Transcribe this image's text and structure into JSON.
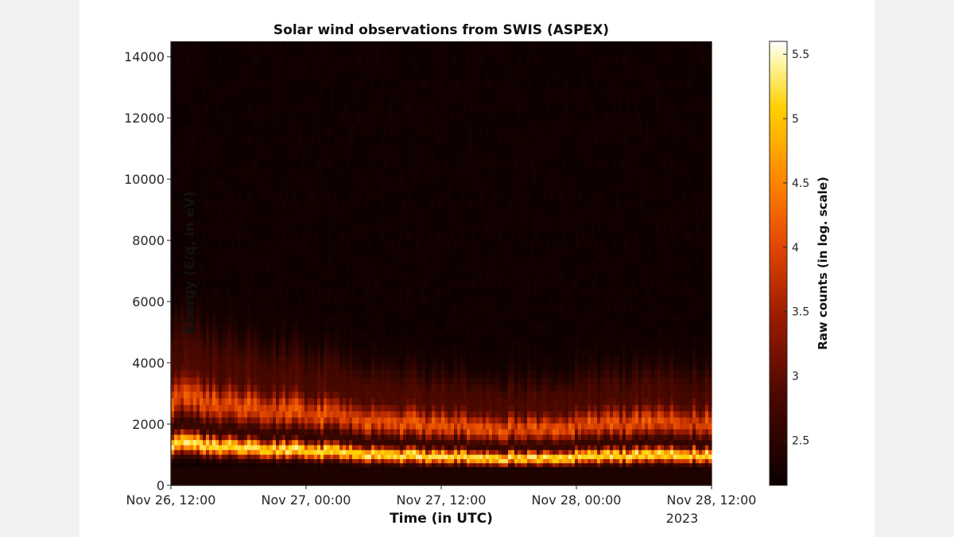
{
  "chart_data": {
    "type": "heatmap",
    "title": "Solar wind observations from SWIS (ASPEX)",
    "xlabel": "Time (in UTC)",
    "ylabel": "Energy (E/q, in eV)",
    "colorbar_label": "Raw counts (in log. scale)",
    "colormap": "hot",
    "x_ticks": [
      "Nov 26, 12:00",
      "Nov 27, 00:00",
      "Nov 27, 12:00",
      "Nov 28, 00:00",
      "Nov 28, 12:00"
    ],
    "x_tick_sublabel": "2023",
    "x_range": [
      "Nov 26, 12:00",
      "Nov 28, 12:00"
    ],
    "y_ticks": [
      0,
      2000,
      4000,
      6000,
      8000,
      10000,
      12000,
      14000
    ],
    "ylim": [
      0,
      14500
    ],
    "colorbar_ticks": [
      2.5,
      3,
      3.5,
      4,
      4.5,
      5,
      5.5
    ],
    "clim": [
      2.15,
      5.6
    ],
    "peak_energy_by_time": [
      {
        "t": "Nov 26, 12:00",
        "peak_eV": 1400
      },
      {
        "t": "Nov 26, 18:00",
        "peak_eV": 1250
      },
      {
        "t": "Nov 27, 00:00",
        "peak_eV": 1150
      },
      {
        "t": "Nov 27, 06:00",
        "peak_eV": 1000
      },
      {
        "t": "Nov 27, 12:00",
        "peak_eV": 950
      },
      {
        "t": "Nov 27, 18:00",
        "peak_eV": 900
      },
      {
        "t": "Nov 28, 00:00",
        "peak_eV": 950
      },
      {
        "t": "Nov 28, 06:00",
        "peak_eV": 1000
      },
      {
        "t": "Nov 28, 12:00",
        "peak_eV": 1000
      }
    ],
    "max_log_counts": 5.55,
    "background_log_counts": 2.2
  }
}
